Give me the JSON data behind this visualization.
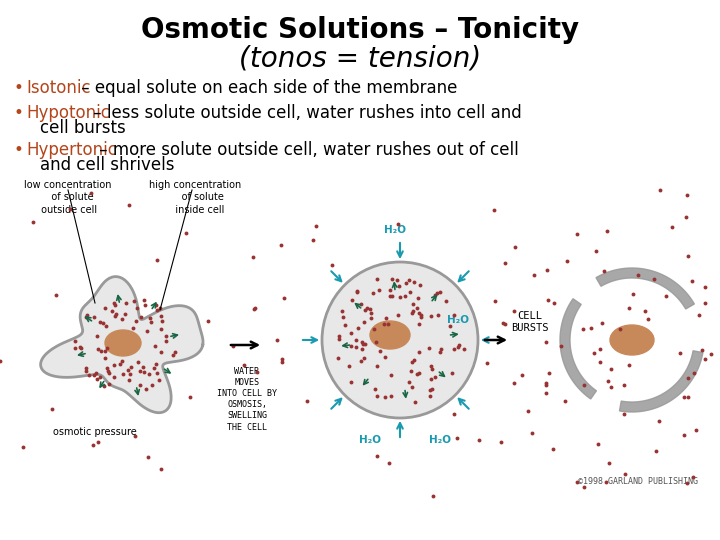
{
  "title_line1": "Osmotic Solutions – Tonicity",
  "title_line2": "(tonos = tension)",
  "title_fontsize": 20,
  "title_color": "#000000",
  "bg_color": "#ffffff",
  "bullet_color": "#b5451b",
  "text_color": "#000000",
  "bullet_fontsize": 12,
  "cap_fontsize": 7,
  "water_color": "#1a9ab0",
  "arrow_color": "#1a9ab0",
  "green_arrow_color": "#1a6644",
  "cell_fill": "#e8e8e8",
  "cell_border": "#999999",
  "nucleus_color": "#c8895a",
  "dot_color": "#993333",
  "black_arrow_color": "#111111",
  "copyright": "©1998 GARLAND PUBLISHING"
}
